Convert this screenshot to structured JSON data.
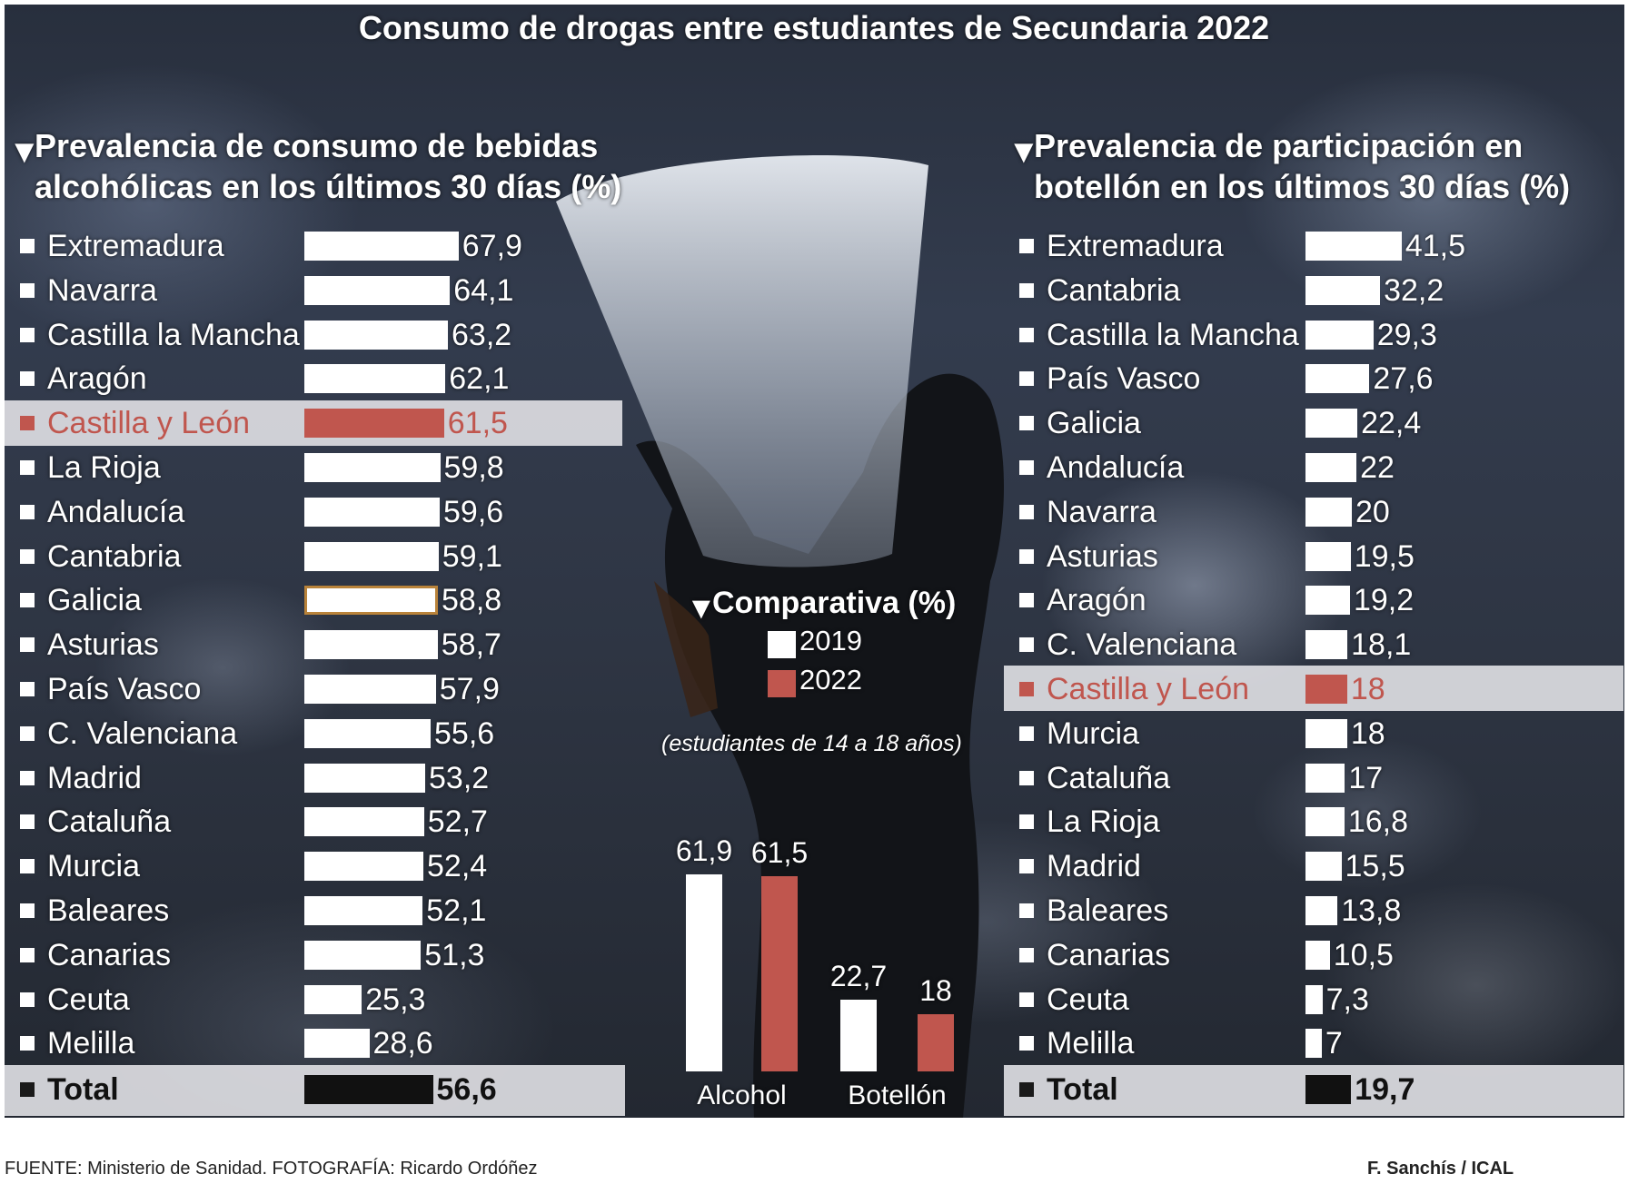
{
  "title": "Consumo de drogas entre estudiantes de Secundaria 2022",
  "colors": {
    "highlight": "#c0564e",
    "bar": "#ffffff",
    "total": "#111111",
    "outline": "#b9833a"
  },
  "left": {
    "title_line1": "Prevalencia de consumo de bebidas",
    "title_line2": "alcohólicas en los últimos 30 días (%)"
  },
  "right": {
    "title_line1": "Prevalencia de participación en",
    "title_line2": "botellón en los últimos 30 días (%)"
  },
  "middle": {
    "title": "Comparativa (%)",
    "legend_2019": "2019",
    "legend_2022": "2022",
    "note": "(estudiantes de 14 a 18 años)"
  },
  "footer": {
    "source": "FUENTE: Ministerio de Sanidad. FOTOGRAFÍA: Ricardo Ordóñez",
    "credit": "F. Sanchís / ICAL"
  },
  "chart_data": [
    {
      "type": "bar",
      "orientation": "horizontal",
      "title": "Prevalencia de consumo de bebidas alcohólicas en los últimos 30 días (%)",
      "categories": [
        "Extremadura",
        "Navarra",
        "Castilla la Mancha",
        "Aragón",
        "Castilla y León",
        "La Rioja",
        "Andalucía",
        "Cantabria",
        "Galicia",
        "Asturias",
        "País Vasco",
        "C. Valenciana",
        "Madrid",
        "Cataluña",
        "Murcia",
        "Baleares",
        "Canarias",
        "Ceuta",
        "Melilla",
        "Total"
      ],
      "values": [
        67.9,
        64.1,
        63.2,
        62.1,
        61.5,
        59.8,
        59.6,
        59.1,
        58.8,
        58.7,
        57.9,
        55.6,
        53.2,
        52.7,
        52.4,
        52.1,
        51.3,
        25.3,
        28.6,
        56.6
      ],
      "labels": [
        "67,9",
        "64,1",
        "63,2",
        "62,1",
        "61,5",
        "59,8",
        "59,6",
        "59,1",
        "58,8",
        "58,7",
        "57,9",
        "55,6",
        "53,2",
        "52,7",
        "52,4",
        "52,1",
        "51,3",
        "25,3",
        "28,6",
        "56,6"
      ],
      "highlight": "Castilla y León",
      "outlined": "Galicia",
      "total": "Total"
    },
    {
      "type": "bar",
      "orientation": "horizontal",
      "title": "Prevalencia de participación en botellón en los últimos 30 días (%)",
      "categories": [
        "Extremadura",
        "Cantabria",
        "Castilla la Mancha",
        "País Vasco",
        "Galicia",
        "Andalucía",
        "Navarra",
        "Asturias",
        "Aragón",
        "C. Valenciana",
        "Castilla y León",
        "Murcia",
        "Cataluña",
        "La Rioja",
        "Madrid",
        "Baleares",
        "Canarias",
        "Ceuta",
        "Melilla",
        "Total"
      ],
      "values": [
        41.5,
        32.2,
        29.3,
        27.6,
        22.4,
        22,
        20,
        19.5,
        19.2,
        18.1,
        18,
        18,
        17,
        16.8,
        15.5,
        13.8,
        10.5,
        7.3,
        7,
        19.7
      ],
      "labels": [
        "41,5",
        "32,2",
        "29,3",
        "27,6",
        "22,4",
        "22",
        "20",
        "19,5",
        "19,2",
        "18,1",
        "18",
        "18",
        "17",
        "16,8",
        "15,5",
        "13,8",
        "10,5",
        "7,3",
        "7",
        "19,7"
      ],
      "highlight": "Castilla y León",
      "total": "Total"
    },
    {
      "type": "bar",
      "title": "Comparativa (%)",
      "categories": [
        "Alcohol",
        "Botellón"
      ],
      "series": [
        {
          "name": "2019",
          "values": [
            61.9,
            22.7
          ],
          "labels": [
            "61,9",
            "22,7"
          ],
          "color": "#ffffff"
        },
        {
          "name": "2022",
          "values": [
            61.5,
            18
          ],
          "labels": [
            "61,5",
            "18"
          ],
          "color": "#c0564e"
        }
      ]
    }
  ]
}
